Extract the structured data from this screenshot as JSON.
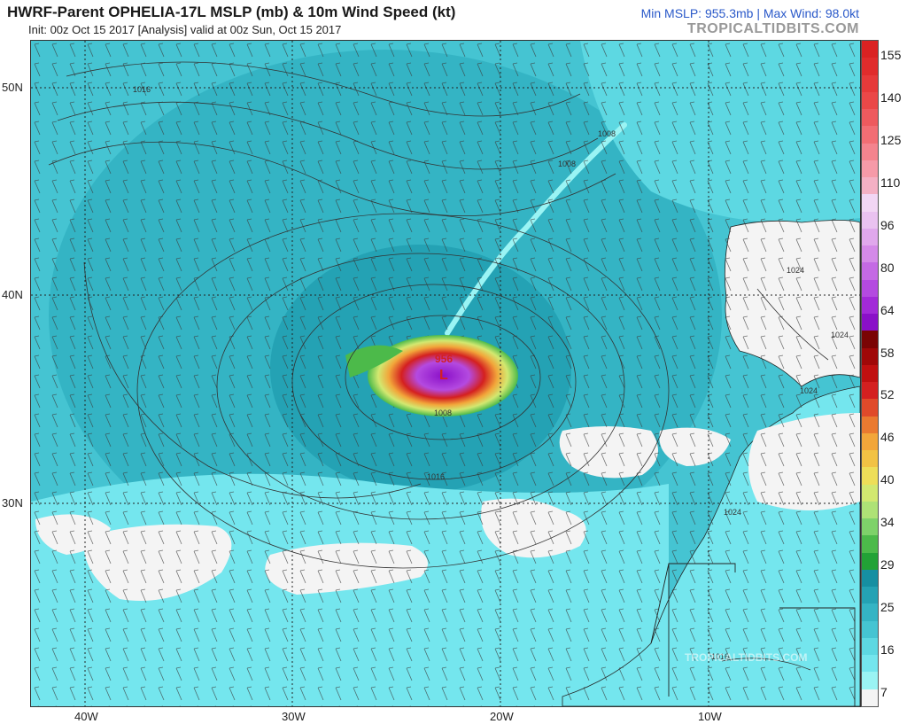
{
  "header": {
    "title": "HWRF-Parent OPHELIA-17L MSLP (mb) & 10m Wind Speed (kt)",
    "init_line": "Init: 00z Oct 15 2017   [Analysis]   valid at 00z Sun, Oct 15 2017",
    "stats": "Min MSLP: 955.3mb | Max Wind: 98.0kt",
    "brand": "TROPICALTIDBITS.COM"
  },
  "map": {
    "lat_labels": [
      "50N",
      "40N",
      "30N"
    ],
    "lon_labels": [
      "40W",
      "30W",
      "20W",
      "10W"
    ],
    "isobar_labels": [
      "1016",
      "1008",
      "1008",
      "1008",
      "1016",
      "1024",
      "1024",
      "1024",
      "1024",
      "1016"
    ],
    "center_pressure": "956",
    "low_symbol": "L",
    "watermark": "TROPICALTIDBITS.COM",
    "colors": {
      "ocean_dark": "#2aa7bc",
      "ocean_mid": "#45c4d2",
      "ocean_light": "#74e6ee",
      "calm": "#ffffff",
      "land": "#ffffff"
    }
  },
  "colorbar": {
    "labels": [
      "155",
      "140",
      "125",
      "110",
      "96",
      "80",
      "64",
      "58",
      "52",
      "46",
      "40",
      "34",
      "29",
      "25",
      "16",
      "7"
    ],
    "colors": [
      "#f4f4f4",
      "#9af4f4",
      "#74e6ee",
      "#5dd8e2",
      "#45c4d2",
      "#34b4c4",
      "#24a2b4",
      "#168fa2",
      "#22a236",
      "#4cba4a",
      "#7ed26a",
      "#aee276",
      "#d2e870",
      "#eede58",
      "#f2c244",
      "#f2a63a",
      "#ea7a30",
      "#e04a2a",
      "#d42020",
      "#c01010",
      "#a00808",
      "#7a0404",
      "#8a10c8",
      "#a22ad8",
      "#b44ae0",
      "#c46ae4",
      "#d48ae8",
      "#e0a8ec",
      "#eac2f0",
      "#f2d6f4",
      "#f4b0c4",
      "#f69aa8",
      "#f4848e",
      "#f26e74",
      "#ee5a5e",
      "#ea4848",
      "#e63a3a",
      "#e02c2c",
      "#da2222"
    ]
  }
}
